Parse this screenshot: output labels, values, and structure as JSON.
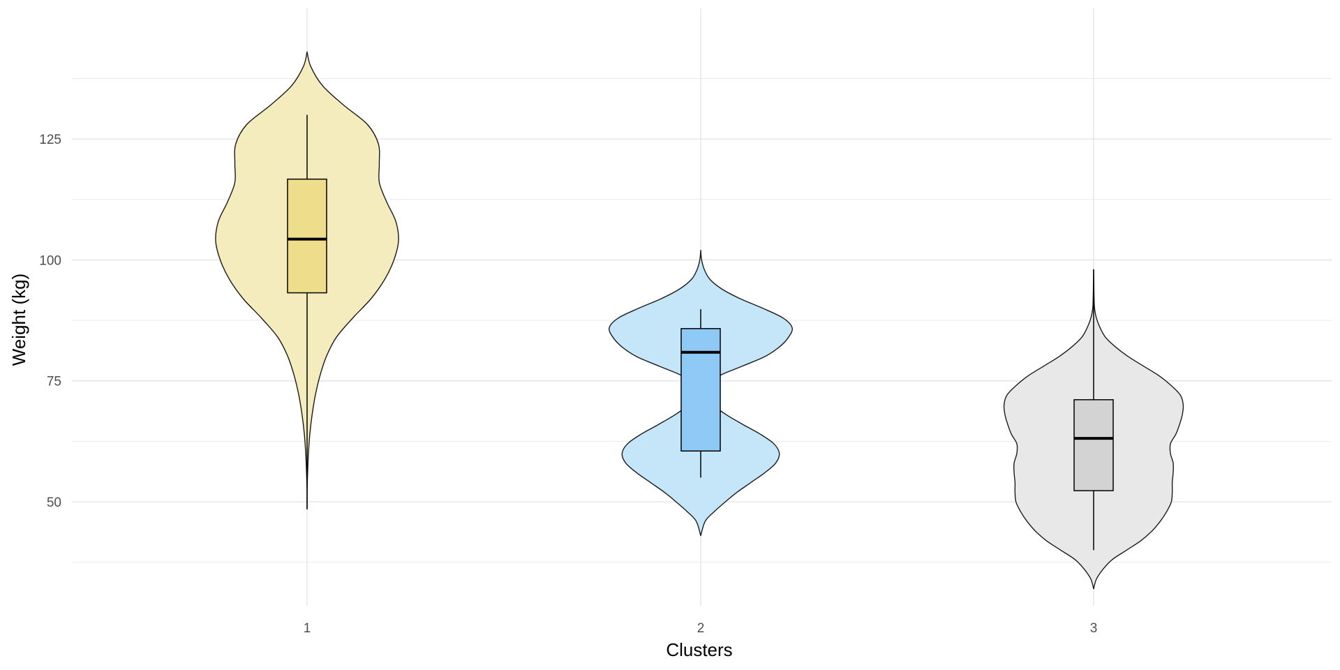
{
  "chart_data": {
    "type": "violin",
    "xlabel": "Clusters",
    "ylabel": "Weight (kg)",
    "categories": [
      "1",
      "2",
      "3"
    ],
    "ylim": [
      28.5,
      152
    ],
    "yticks": [
      50,
      75,
      100,
      125
    ],
    "y_minor_gridlines": [
      37.5,
      62.5,
      87.5,
      112.5,
      137.5
    ],
    "grid": true,
    "legend": "none",
    "series": [
      {
        "category": "1",
        "violin_color": "#f5ecbe",
        "box_color": "#eedd8a",
        "box": {
          "whisker_low": 48.5,
          "q1": 93.2,
          "median": 104.3,
          "q3": 116.7,
          "whisker_high": 130
        },
        "violin_range": [
          48.5,
          143
        ],
        "density_width_profile": [
          [
            48.5,
            0.0
          ],
          [
            52,
            0.0
          ],
          [
            56,
            0.006
          ],
          [
            60,
            0.015
          ],
          [
            64,
            0.03
          ],
          [
            68,
            0.055
          ],
          [
            72,
            0.09
          ],
          [
            76,
            0.14
          ],
          [
            80,
            0.21
          ],
          [
            84,
            0.32
          ],
          [
            88,
            0.5
          ],
          [
            92,
            0.7
          ],
          [
            96,
            0.85
          ],
          [
            100,
            0.95
          ],
          [
            104,
            1.0
          ],
          [
            108,
            0.97
          ],
          [
            112,
            0.87
          ],
          [
            116,
            0.79
          ],
          [
            120,
            0.79
          ],
          [
            124,
            0.78
          ],
          [
            128,
            0.66
          ],
          [
            132,
            0.4
          ],
          [
            136,
            0.17
          ],
          [
            140,
            0.04
          ],
          [
            143,
            0.0
          ]
        ]
      },
      {
        "category": "2",
        "violin_color": "#c5e5f9",
        "box_color": "#8ecaf5",
        "box": {
          "whisker_low": 55,
          "q1": 60.5,
          "median": 80.9,
          "q3": 85.8,
          "whisker_high": 89.8
        },
        "violin_range": [
          43,
          102
        ],
        "density_width_profile": [
          [
            43,
            0.0
          ],
          [
            46,
            0.05
          ],
          [
            48,
            0.15
          ],
          [
            50,
            0.27
          ],
          [
            52,
            0.4
          ],
          [
            54,
            0.55
          ],
          [
            56,
            0.7
          ],
          [
            58,
            0.82
          ],
          [
            60,
            0.86
          ],
          [
            62,
            0.8
          ],
          [
            64,
            0.65
          ],
          [
            66,
            0.46
          ],
          [
            68,
            0.28
          ],
          [
            70,
            0.14
          ],
          [
            72,
            0.09
          ],
          [
            74,
            0.09
          ],
          [
            76,
            0.2
          ],
          [
            78,
            0.45
          ],
          [
            80,
            0.7
          ],
          [
            82,
            0.86
          ],
          [
            84,
            0.96
          ],
          [
            86,
            1.0
          ],
          [
            88,
            0.9
          ],
          [
            90,
            0.68
          ],
          [
            92,
            0.43
          ],
          [
            94,
            0.23
          ],
          [
            96,
            0.1
          ],
          [
            98,
            0.04
          ],
          [
            100,
            0.01
          ],
          [
            102,
            0.0
          ]
        ]
      },
      {
        "category": "3",
        "violin_color": "#e8e8e8",
        "box_color": "#d3d3d3",
        "box": {
          "whisker_low": 40,
          "q1": 52.3,
          "median": 63.1,
          "q3": 71.1,
          "whisker_high": 98
        },
        "violin_range": [
          32,
          98
        ],
        "density_width_profile": [
          [
            32,
            0.0
          ],
          [
            34,
            0.03
          ],
          [
            36,
            0.1
          ],
          [
            38,
            0.2
          ],
          [
            40,
            0.36
          ],
          [
            42,
            0.52
          ],
          [
            44,
            0.64
          ],
          [
            46,
            0.73
          ],
          [
            48,
            0.8
          ],
          [
            50,
            0.85
          ],
          [
            52,
            0.86
          ],
          [
            54,
            0.86
          ],
          [
            56,
            0.87
          ],
          [
            58,
            0.87
          ],
          [
            60,
            0.84
          ],
          [
            62,
            0.84
          ],
          [
            64,
            0.9
          ],
          [
            66,
            0.94
          ],
          [
            68,
            0.97
          ],
          [
            70,
            0.98
          ],
          [
            72,
            0.95
          ],
          [
            74,
            0.85
          ],
          [
            76,
            0.72
          ],
          [
            78,
            0.55
          ],
          [
            80,
            0.38
          ],
          [
            82,
            0.24
          ],
          [
            84,
            0.13
          ],
          [
            86,
            0.07
          ],
          [
            88,
            0.03
          ],
          [
            90,
            0.01
          ],
          [
            92,
            0.005
          ],
          [
            94,
            0.003
          ],
          [
            96,
            0.001
          ],
          [
            98,
            0.0
          ]
        ]
      }
    ]
  }
}
